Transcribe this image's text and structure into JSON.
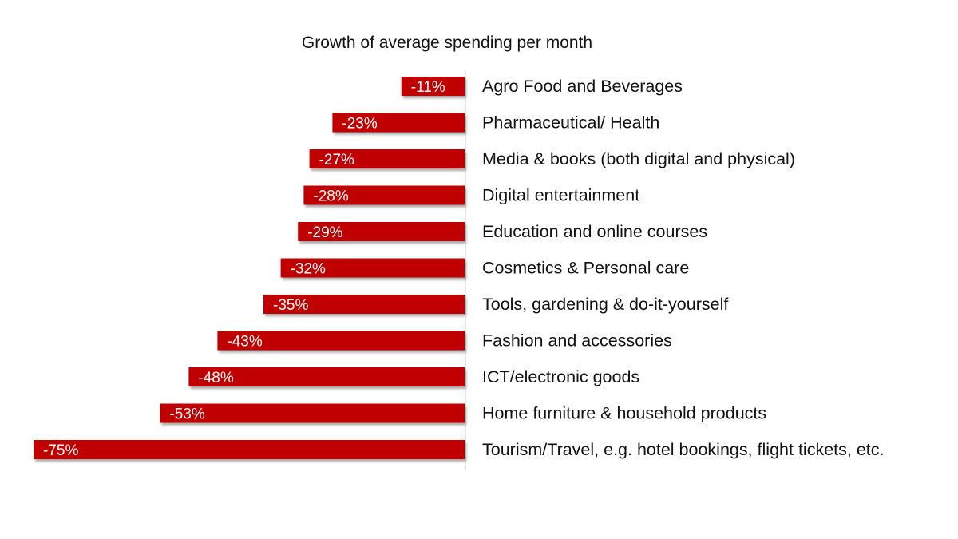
{
  "chart_data": {
    "type": "bar",
    "orientation": "horizontal",
    "title": "Growth of average spending per month",
    "categories": [
      "Agro Food and Beverages",
      "Pharmaceutical/ Health",
      "Media & books (both digital and physical)",
      "Digital entertainment",
      "Education and online courses",
      "Cosmetics & Personal care",
      "Tools, gardening & do-it-yourself",
      "Fashion and accessories",
      "ICT/electronic goods",
      "Home furniture & household products",
      "Tourism/Travel, e.g. hotel bookings, flight tickets, etc."
    ],
    "values": [
      -11,
      -23,
      -27,
      -28,
      -29,
      -32,
      -35,
      -43,
      -48,
      -53,
      -75
    ],
    "value_labels": [
      "-11%",
      "-23%",
      "-27%",
      "-28%",
      "-29%",
      "-32%",
      "-35%",
      "-43%",
      "-48%",
      "-53%",
      "-75%"
    ],
    "unit": "%",
    "xlim": [
      -75,
      0
    ],
    "grid": false,
    "legend": "none",
    "bar_color": "#c00000"
  }
}
